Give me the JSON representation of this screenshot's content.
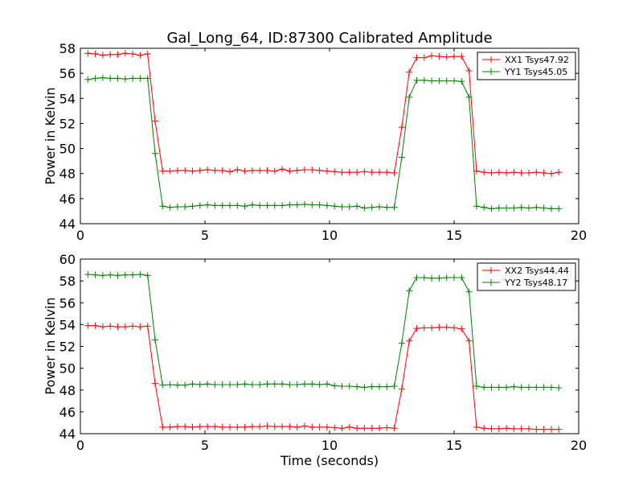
{
  "figure_title": "Gal_Long_64, ID:87300 Calibrated Amplitude",
  "colors": {
    "red": "#ff0000",
    "green": "#008000",
    "axis": "#000000"
  },
  "chart_data": [
    {
      "type": "line",
      "title": "Gal_Long_64, ID:87300 Calibrated Amplitude",
      "xlabel": "",
      "ylabel": "Power in Kelvin",
      "xlim": [
        0,
        20
      ],
      "ylim": [
        44,
        58
      ],
      "xticks": [
        0,
        5,
        10,
        15,
        20
      ],
      "yticks": [
        44,
        46,
        48,
        50,
        52,
        54,
        56,
        58
      ],
      "legend_position": "top-right",
      "x": [
        0.3,
        0.6,
        0.9,
        1.2,
        1.5,
        1.8,
        2.1,
        2.4,
        2.7,
        3.0,
        3.3,
        3.6,
        3.9,
        4.2,
        4.5,
        4.8,
        5.1,
        5.4,
        5.7,
        6.0,
        6.3,
        6.6,
        6.9,
        7.2,
        7.5,
        7.8,
        8.1,
        8.4,
        8.7,
        9.0,
        9.3,
        9.6,
        9.9,
        10.2,
        10.5,
        10.8,
        11.1,
        11.4,
        11.7,
        12.0,
        12.3,
        12.6,
        12.9,
        13.2,
        13.5,
        13.8,
        14.1,
        14.4,
        14.7,
        15.0,
        15.3,
        15.6,
        15.9,
        16.2,
        16.5,
        16.8,
        17.1,
        17.4,
        17.7,
        18.0,
        18.3,
        18.6,
        18.9,
        19.2
      ],
      "series": [
        {
          "name": "XX1 Tsys47.92",
          "color": "#ff0000",
          "values": [
            57.6,
            57.55,
            57.45,
            57.5,
            57.5,
            57.6,
            57.55,
            57.45,
            57.55,
            52.2,
            48.2,
            48.2,
            48.25,
            48.25,
            48.2,
            48.25,
            48.3,
            48.25,
            48.25,
            48.15,
            48.3,
            48.2,
            48.25,
            48.25,
            48.25,
            48.2,
            48.35,
            48.2,
            48.25,
            48.3,
            48.3,
            48.25,
            48.2,
            48.15,
            48.1,
            48.1,
            48.1,
            48.15,
            48.1,
            48.1,
            48.1,
            48.05,
            51.7,
            56.1,
            57.25,
            57.25,
            57.4,
            57.35,
            57.3,
            57.35,
            57.35,
            56.2,
            48.2,
            48.1,
            48.05,
            48.1,
            48.05,
            48.1,
            48.05,
            48.05,
            48.1,
            48.05,
            48.0,
            48.1
          ]
        },
        {
          "name": "YY1 Tsys45.05",
          "color": "#008000",
          "values": [
            55.5,
            55.6,
            55.65,
            55.6,
            55.6,
            55.55,
            55.6,
            55.6,
            55.6,
            49.6,
            45.4,
            45.3,
            45.35,
            45.35,
            45.4,
            45.45,
            45.5,
            45.45,
            45.45,
            45.45,
            45.45,
            45.4,
            45.5,
            45.45,
            45.45,
            45.45,
            45.45,
            45.5,
            45.5,
            45.55,
            45.5,
            45.5,
            45.45,
            45.4,
            45.35,
            45.35,
            45.4,
            45.25,
            45.3,
            45.35,
            45.3,
            45.3,
            49.3,
            54.1,
            55.45,
            55.45,
            55.4,
            55.4,
            55.4,
            55.4,
            55.35,
            54.1,
            45.4,
            45.3,
            45.2,
            45.25,
            45.25,
            45.25,
            45.3,
            45.25,
            45.3,
            45.25,
            45.2,
            45.2
          ]
        }
      ]
    },
    {
      "type": "line",
      "title": "",
      "xlabel": "Time (seconds)",
      "ylabel": "Power in Kelvin",
      "xlim": [
        0,
        20
      ],
      "ylim": [
        44,
        60
      ],
      "xticks": [
        0,
        5,
        10,
        15,
        20
      ],
      "yticks": [
        44,
        46,
        48,
        50,
        52,
        54,
        56,
        58,
        60
      ],
      "legend_position": "top-right",
      "x": [
        0.3,
        0.6,
        0.9,
        1.2,
        1.5,
        1.8,
        2.1,
        2.4,
        2.7,
        3.0,
        3.3,
        3.6,
        3.9,
        4.2,
        4.5,
        4.8,
        5.1,
        5.4,
        5.7,
        6.0,
        6.3,
        6.6,
        6.9,
        7.2,
        7.5,
        7.8,
        8.1,
        8.4,
        8.7,
        9.0,
        9.3,
        9.6,
        9.9,
        10.2,
        10.5,
        10.8,
        11.1,
        11.4,
        11.7,
        12.0,
        12.3,
        12.6,
        12.9,
        13.2,
        13.5,
        13.8,
        14.1,
        14.4,
        14.7,
        15.0,
        15.3,
        15.6,
        15.9,
        16.2,
        16.5,
        16.8,
        17.1,
        17.4,
        17.7,
        18.0,
        18.3,
        18.6,
        18.9,
        19.2
      ],
      "series": [
        {
          "name": "XX2 Tsys44.44",
          "color": "#ff0000",
          "values": [
            53.9,
            53.9,
            53.8,
            53.85,
            53.8,
            53.8,
            53.85,
            53.8,
            53.85,
            48.6,
            44.6,
            44.6,
            44.65,
            44.65,
            44.6,
            44.65,
            44.65,
            44.65,
            44.6,
            44.6,
            44.6,
            44.6,
            44.65,
            44.65,
            44.7,
            44.65,
            44.65,
            44.65,
            44.6,
            44.7,
            44.6,
            44.6,
            44.6,
            44.55,
            44.5,
            44.6,
            44.5,
            44.5,
            44.5,
            44.5,
            44.55,
            44.5,
            48.1,
            52.5,
            53.65,
            53.7,
            53.7,
            53.75,
            53.75,
            53.7,
            53.6,
            52.5,
            44.6,
            44.5,
            44.45,
            44.45,
            44.5,
            44.45,
            44.45,
            44.45,
            44.4,
            44.4,
            44.4,
            44.4
          ]
        },
        {
          "name": "YY2 Tsys48.17",
          "color": "#008000",
          "values": [
            58.6,
            58.55,
            58.5,
            58.55,
            58.5,
            58.55,
            58.55,
            58.6,
            58.5,
            52.6,
            48.45,
            48.5,
            48.45,
            48.45,
            48.55,
            48.5,
            48.55,
            48.5,
            48.5,
            48.5,
            48.5,
            48.55,
            48.5,
            48.5,
            48.55,
            48.55,
            48.55,
            48.5,
            48.5,
            48.55,
            48.55,
            48.5,
            48.55,
            48.4,
            48.35,
            48.35,
            48.3,
            48.25,
            48.3,
            48.3,
            48.3,
            48.35,
            52.3,
            57.1,
            58.3,
            58.3,
            58.25,
            58.25,
            58.3,
            58.3,
            58.3,
            57.0,
            48.35,
            48.25,
            48.25,
            48.25,
            48.25,
            48.3,
            48.25,
            48.25,
            48.25,
            48.25,
            48.25,
            48.2
          ]
        }
      ]
    }
  ]
}
